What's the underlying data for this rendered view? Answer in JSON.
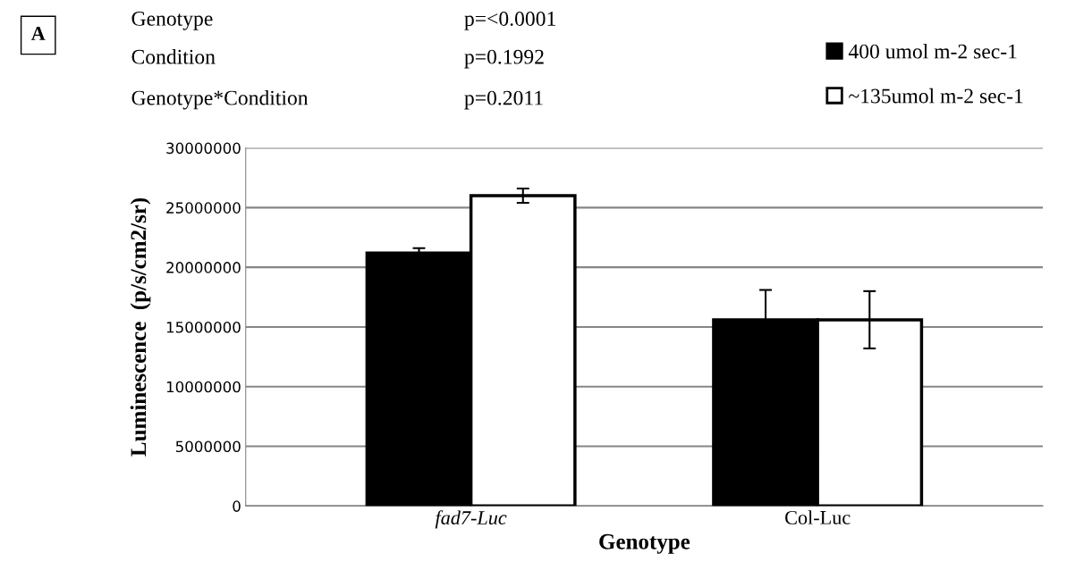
{
  "chart_data": {
    "type": "bar",
    "title": "A",
    "annotations": [
      "Genotype",
      "p=<0.0001",
      "Condition",
      "p=0.1992",
      "Genotype*Condition",
      "p=0.2011"
    ],
    "xlabel": "Genotype",
    "ylabel": "Luminescence  (p/s/cm2/sr)",
    "categories": [
      "fad7-Luc",
      "Col-Luc"
    ],
    "series": [
      {
        "name": "400 umol m-2 sec-1",
        "color": "#000000",
        "values": [
          21200000,
          15600000
        ],
        "errors": [
          400000,
          2500000
        ]
      },
      {
        "name": "~135umol m-2 sec-1",
        "color": "#ffffff",
        "values": [
          26000000,
          15600000
        ],
        "errors": [
          600000,
          2400000
        ]
      }
    ],
    "ylim": [
      0,
      30000000
    ],
    "yticks": [
      0,
      5000000,
      10000000,
      15000000,
      20000000,
      25000000,
      30000000
    ],
    "grid": "y",
    "legend": "top right"
  }
}
